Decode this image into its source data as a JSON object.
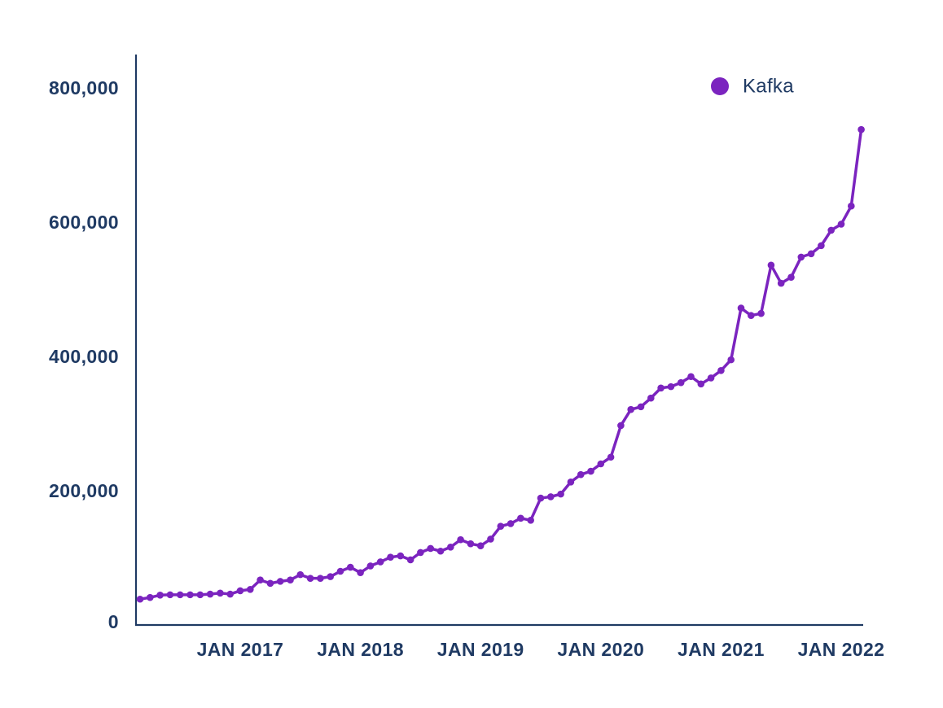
{
  "chart_data": {
    "type": "line",
    "title": "",
    "xlabel": "",
    "ylabel": "",
    "grid": false,
    "legend_position": "top-right",
    "ylim": [
      0,
      800000
    ],
    "axis_color": "#1f3a63",
    "label_color": "#1f3a63",
    "background_color": "#ffffff",
    "y_ticks": [
      {
        "label": "0",
        "value": 0
      },
      {
        "label": "200,000",
        "value": 200000
      },
      {
        "label": "400,000",
        "value": 400000
      },
      {
        "label": "600,000",
        "value": 600000
      },
      {
        "label": "800,000",
        "value": 800000
      }
    ],
    "x_ticks": [
      {
        "label": "JAN 2017",
        "month": "2017-01"
      },
      {
        "label": "JAN 2018",
        "month": "2018-01"
      },
      {
        "label": "JAN 2019",
        "month": "2019-01"
      },
      {
        "label": "JAN 2020",
        "month": "2020-01"
      },
      {
        "label": "JAN 2021",
        "month": "2021-01"
      },
      {
        "label": "JAN 2022",
        "month": "2022-01"
      }
    ],
    "legend": {
      "label": "Kafka",
      "color": "#7b24bf"
    },
    "series": [
      {
        "name": "Kafka",
        "color": "#7b24bf",
        "x": [
          "2016-03",
          "2016-04",
          "2016-05",
          "2016-06",
          "2016-07",
          "2016-08",
          "2016-09",
          "2016-10",
          "2016-11",
          "2016-12",
          "2017-01",
          "2017-02",
          "2017-03",
          "2017-04",
          "2017-05",
          "2017-06",
          "2017-07",
          "2017-08",
          "2017-09",
          "2017-10",
          "2017-11",
          "2017-12",
          "2018-01",
          "2018-02",
          "2018-03",
          "2018-04",
          "2018-05",
          "2018-06",
          "2018-07",
          "2018-08",
          "2018-09",
          "2018-10",
          "2018-11",
          "2018-12",
          "2019-01",
          "2019-02",
          "2019-03",
          "2019-04",
          "2019-05",
          "2019-06",
          "2019-07",
          "2019-08",
          "2019-09",
          "2019-10",
          "2019-11",
          "2019-12",
          "2020-01",
          "2020-02",
          "2020-03",
          "2020-04",
          "2020-05",
          "2020-06",
          "2020-07",
          "2020-08",
          "2020-09",
          "2020-10",
          "2020-11",
          "2020-12",
          "2021-01",
          "2021-02",
          "2021-03",
          "2021-04",
          "2021-05",
          "2021-06",
          "2021-07",
          "2021-08",
          "2021-09",
          "2021-10",
          "2021-11",
          "2021-12",
          "2022-01",
          "2022-02",
          "2022-03"
        ],
        "values": [
          38500,
          41000,
          44500,
          45000,
          45000,
          45000,
          45000,
          46000,
          47500,
          46000,
          51000,
          53000,
          67000,
          62000,
          65000,
          67000,
          75000,
          69500,
          69500,
          72000,
          80000,
          86000,
          78000,
          88000,
          94000,
          101000,
          103000,
          97000,
          108000,
          114000,
          110000,
          116000,
          127000,
          121000,
          118000,
          128000,
          147000,
          151000,
          159000,
          156000,
          189000,
          191000,
          195000,
          213000,
          224000,
          229000,
          240000,
          250000,
          297000,
          321000,
          325000,
          338000,
          353000,
          355000,
          361000,
          370000,
          359000,
          368000,
          379000,
          395000,
          472000,
          461000,
          464000,
          536000,
          509000,
          518000,
          548000,
          553000,
          565000,
          588000,
          597000,
          624000,
          738000
        ]
      }
    ]
  }
}
